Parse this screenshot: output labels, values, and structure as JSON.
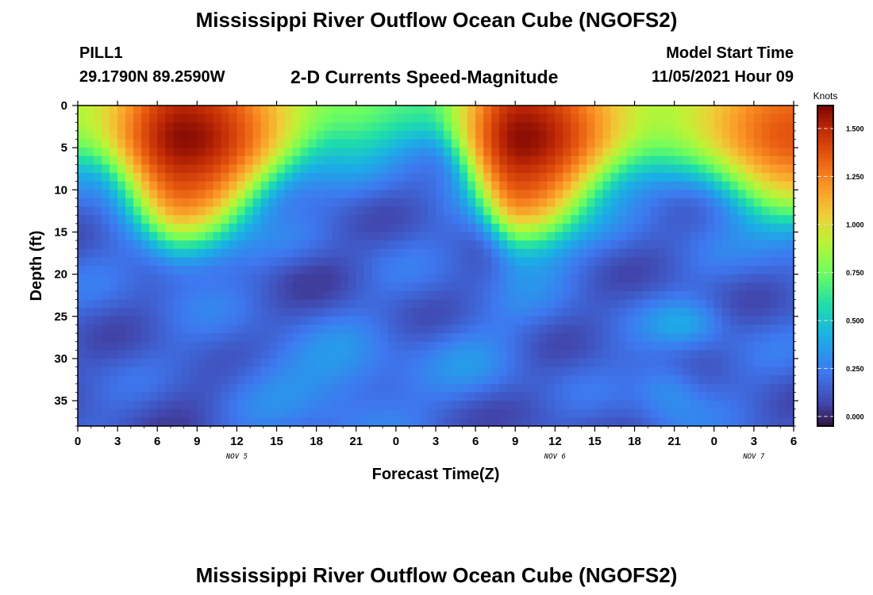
{
  "header": {
    "title": "Mississippi River Outflow Ocean Cube (NGOFS2)",
    "station": "PILL1",
    "coords": "29.1790N  89.2590W",
    "subtitle": "2-D Currents Speed-Magnitude",
    "model_start_label": "Model Start Time",
    "model_start_value": "11/05/2021 Hour 09"
  },
  "footer": {
    "title": "Mississippi River Outflow Ocean Cube (NGOFS2)"
  },
  "chart_data": {
    "type": "heatmap",
    "title": "2-D Currents Speed-Magnitude",
    "xlabel": "Forecast Time(Z)",
    "ylabel": "Depth (ft)",
    "colorbar_label": "Knots",
    "x_range_hours": [
      0,
      54
    ],
    "x_tick_labels": [
      "0",
      "3",
      "6",
      "9",
      "12",
      "15",
      "18",
      "21",
      "0",
      "3",
      "6",
      "9",
      "12",
      "15",
      "18",
      "21",
      "0",
      "3",
      "6"
    ],
    "date_labels": [
      {
        "label": "NOV 5",
        "at_hour": 12
      },
      {
        "label": "NOV 6",
        "at_hour": 36
      },
      {
        "label": "NOV 7",
        "at_hour": 51
      }
    ],
    "y_range_ft": [
      0,
      38
    ],
    "y_ticks": [
      0,
      5,
      10,
      15,
      20,
      25,
      30,
      35
    ],
    "colorbar_range": [
      -0.05,
      1.62
    ],
    "colorbar_ticks": [
      "0.000",
      "0.250",
      "0.500",
      "0.750",
      "1.000",
      "1.250",
      "1.500"
    ],
    "surface_speed_knots": [
      {
        "hour": 0,
        "speed": 1.0
      },
      {
        "hour": 8,
        "speed": 1.6
      },
      {
        "hour": 20,
        "speed": 0.9
      },
      {
        "hour": 26,
        "speed": 0.8
      },
      {
        "hour": 33.5,
        "speed": 1.6
      },
      {
        "hour": 44,
        "speed": 1.0
      },
      {
        "hour": 54,
        "speed": 1.4
      }
    ],
    "deep_speed_knots_range": [
      0.05,
      0.4
    ]
  }
}
